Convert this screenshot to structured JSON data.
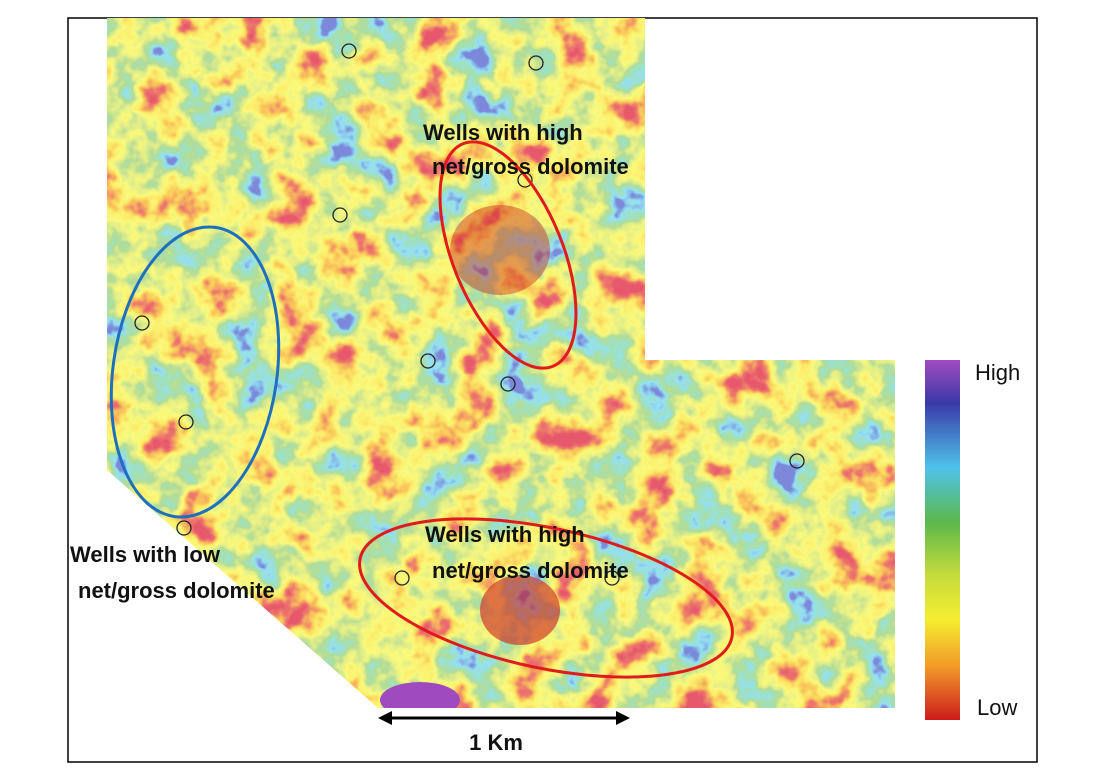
{
  "annotations": [
    {
      "lines": [
        "Wells with high",
        "net/gross dolomite"
      ]
    },
    {
      "lines": [
        "Wells with low",
        "net/gross dolomite"
      ]
    },
    {
      "lines": [
        "Wells with high",
        "net/gross dolomite"
      ]
    }
  ],
  "legend": {
    "high": "High",
    "low": "Low"
  },
  "scale_bar": "1 Km"
}
